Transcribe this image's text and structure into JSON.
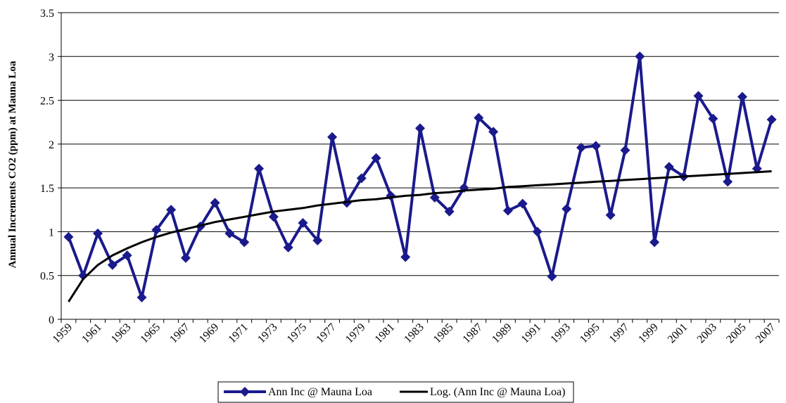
{
  "chart_data": {
    "type": "line",
    "title": "",
    "xlabel": "",
    "ylabel": "Annual Increments CO2 (ppm) at Mauna Loa",
    "x": [
      1959,
      1960,
      1961,
      1962,
      1963,
      1964,
      1965,
      1966,
      1967,
      1968,
      1969,
      1970,
      1971,
      1972,
      1973,
      1974,
      1975,
      1976,
      1977,
      1978,
      1979,
      1980,
      1981,
      1982,
      1983,
      1984,
      1985,
      1986,
      1987,
      1988,
      1989,
      1990,
      1991,
      1992,
      1993,
      1994,
      1995,
      1996,
      1997,
      1998,
      1999,
      2000,
      2001,
      2002,
      2003,
      2004,
      2005,
      2006,
      2007
    ],
    "x_tick_labels": [
      "1959",
      "1961",
      "1963",
      "1965",
      "1967",
      "1969",
      "1971",
      "1973",
      "1975",
      "1977",
      "1979",
      "1981",
      "1983",
      "1985",
      "1987",
      "1989",
      "1991",
      "1993",
      "1995",
      "1997",
      "1999",
      "2001",
      "2003",
      "2005",
      "2007"
    ],
    "y_ticks": [
      "0",
      "0.5",
      "1",
      "1.5",
      "2",
      "2.5",
      "3",
      "3.5"
    ],
    "ylim": [
      0,
      3.5
    ],
    "grid": "horizontal",
    "legend_position": "bottom",
    "series": [
      {
        "name": "Ann Inc @ Mauna Loa",
        "color": "#1a1a8c",
        "marker": "diamond",
        "values": [
          0.94,
          0.5,
          0.98,
          0.62,
          0.73,
          0.25,
          1.02,
          1.25,
          0.7,
          1.06,
          1.33,
          0.98,
          0.88,
          1.72,
          1.17,
          0.82,
          1.1,
          0.9,
          2.08,
          1.33,
          1.61,
          1.84,
          1.41,
          0.71,
          2.18,
          1.39,
          1.23,
          1.5,
          2.3,
          2.14,
          1.24,
          1.32,
          1.0,
          0.49,
          1.26,
          1.96,
          1.98,
          1.19,
          1.93,
          3.0,
          0.88,
          1.74,
          1.63,
          2.55,
          2.29,
          1.57,
          2.54,
          1.72,
          2.28
        ]
      },
      {
        "name": "Log. (Ann Inc @ Mauna Loa)",
        "color": "#000000",
        "trendline": "logarithmic",
        "values": [
          0.2,
          0.46,
          0.62,
          0.73,
          0.81,
          0.88,
          0.94,
          0.99,
          1.03,
          1.07,
          1.11,
          1.14,
          1.17,
          1.2,
          1.23,
          1.25,
          1.27,
          1.3,
          1.32,
          1.34,
          1.36,
          1.37,
          1.39,
          1.41,
          1.42,
          1.44,
          1.45,
          1.47,
          1.48,
          1.49,
          1.51,
          1.52,
          1.53,
          1.54,
          1.55,
          1.56,
          1.57,
          1.58,
          1.59,
          1.6,
          1.61,
          1.62,
          1.63,
          1.64,
          1.65,
          1.66,
          1.67,
          1.68,
          1.69
        ]
      }
    ]
  }
}
